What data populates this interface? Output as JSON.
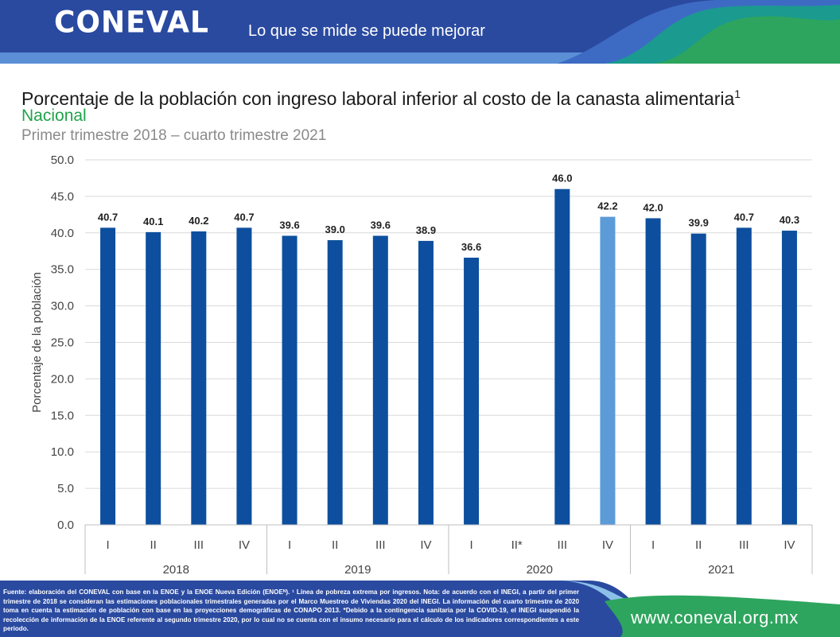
{
  "header": {
    "logo": "CONEVAL",
    "tagline": "Lo que se mide se puede mejorar"
  },
  "title": "Porcentaje de la población con ingreso laboral inferior al costo de la canasta alimentaria",
  "title_footnote": "1",
  "subtitle": "Nacional",
  "period": "Primer trimestre 2018 – cuarto trimestre 2021",
  "colors": {
    "bar": "#0d4f9e",
    "bar_estimate": "#5b9bd8",
    "header_blue": "#2a4aa0",
    "accent_green": "#2ea55e",
    "subtitle_green": "#1fa34a"
  },
  "chart_data": {
    "type": "bar",
    "ylabel": "Porcentaje de la población",
    "ylim": [
      0,
      50
    ],
    "yticks": [
      "0.0",
      "5.0",
      "10.0",
      "15.0",
      "20.0",
      "25.0",
      "30.0",
      "35.0",
      "40.0",
      "45.0",
      "50.0"
    ],
    "grid": true,
    "categories": [
      "I",
      "II",
      "III",
      "IV",
      "I",
      "II",
      "III",
      "IV",
      "I",
      "II*",
      "III",
      "IV",
      "I",
      "II",
      "III",
      "IV"
    ],
    "years": [
      "2018",
      "2019",
      "2020",
      "2021"
    ],
    "values": [
      40.7,
      40.1,
      40.2,
      40.7,
      39.6,
      39.0,
      39.6,
      38.9,
      36.6,
      null,
      46.0,
      42.2,
      42.0,
      39.9,
      40.7,
      40.3
    ],
    "labels": [
      "40.7",
      "40.1",
      "40.2",
      "40.7",
      "39.6",
      "39.0",
      "39.6",
      "38.9",
      "36.6",
      "",
      "46.0",
      "42.2",
      "42.0",
      "39.9",
      "40.7",
      "40.3"
    ],
    "highlighted": [
      false,
      false,
      false,
      false,
      false,
      false,
      false,
      false,
      false,
      false,
      false,
      true,
      false,
      false,
      false,
      false
    ]
  },
  "footer": {
    "source": "Fuente: elaboración del CONEVAL con base en la ENOE y la ENOE Nueva Edición (ENOEᴺ). ¹ Línea de pobreza extrema por ingresos. Nota: de acuerdo con el INEGI, a partir del primer trimestre de 2018 se consideran las estimaciones poblacionales trimestrales generadas por el Marco Muestreo de Viviendas 2020 del INEGI. La información del cuarto trimestre de 2020 toma en cuenta la estimación de población con base en las proyecciones demográficas de CONAPO 2013. *Debido a la contingencia sanitaria por la COVID-19, el INEGI suspendió la recolección de información de la ENOE referente al segundo trimestre 2020, por lo cual no se cuenta con el insumo necesario para el cálculo de los indicadores correspondientes a este periodo.",
    "website": "www.coneval.org.mx"
  }
}
